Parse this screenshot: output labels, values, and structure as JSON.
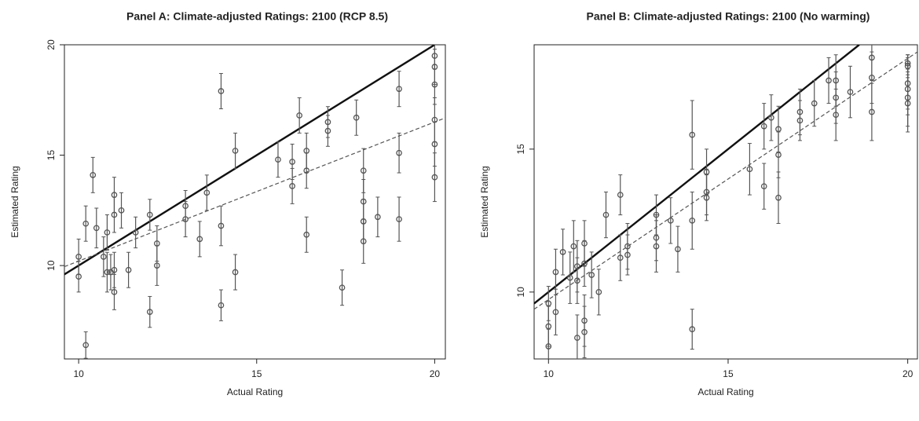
{
  "chart_data": [
    {
      "type": "scatter",
      "title": "Panel A: Climate-adjusted Ratings: 2100 (RCP 8.5)",
      "xlabel": "Actual Rating",
      "ylabel": "Estimated Rating",
      "color": "#555555",
      "x": [
        10,
        10,
        10.2,
        10.2,
        10.4,
        10.5,
        10.7,
        10.8,
        10.8,
        10.9,
        11,
        11,
        11,
        11,
        11.2,
        11.4,
        11.6,
        12,
        12,
        12.2,
        12.2,
        13,
        13,
        13.4,
        13.6,
        14,
        14,
        14,
        14.4,
        14.4,
        15.6,
        16,
        16,
        16.2,
        16.4,
        16.4,
        16.4,
        17,
        17,
        17.4,
        17.8,
        18,
        18,
        18,
        18,
        18.4,
        19,
        19,
        19,
        20,
        20,
        20,
        20,
        20,
        20
      ],
      "values": [
        10.4,
        9.5,
        11.9,
        6.4,
        14.1,
        11.7,
        10.4,
        11.5,
        9.7,
        9.7,
        13.2,
        12.3,
        9.8,
        8.8,
        12.5,
        9.8,
        11.5,
        12.3,
        7.9,
        11.0,
        10.0,
        12.7,
        12.1,
        11.2,
        13.3,
        17.9,
        11.8,
        8.2,
        15.2,
        9.7,
        14.8,
        14.7,
        13.6,
        16.8,
        15.2,
        14.3,
        11.4,
        16.5,
        16.1,
        9.0,
        16.7,
        14.3,
        12.9,
        12.0,
        11.1,
        12.2,
        18.0,
        15.1,
        12.1,
        19.5,
        19.0,
        18.2,
        16.6,
        15.5,
        14.0
      ],
      "errors": [
        0.8,
        0.7,
        0.8,
        0.6,
        0.8,
        0.9,
        0.9,
        0.8,
        0.9,
        0.8,
        0.8,
        0.8,
        0.8,
        0.8,
        0.8,
        0.8,
        0.7,
        0.7,
        0.7,
        0.8,
        0.9,
        0.7,
        0.8,
        0.8,
        0.8,
        0.8,
        0.9,
        0.7,
        0.8,
        0.8,
        0.8,
        0.8,
        0.8,
        0.8,
        0.8,
        0.8,
        0.8,
        0.7,
        0.7,
        0.8,
        0.8,
        1.0,
        1.0,
        1.0,
        1.0,
        0.9,
        0.8,
        0.9,
        1.0,
        0.6,
        0.8,
        0.9,
        1.0,
        1.0,
        1.1
      ],
      "lines": [
        {
          "style": "solid",
          "x": [
            9.6,
            20
          ],
          "y": [
            9.6,
            20
          ]
        },
        {
          "style": "dashed",
          "x": [
            9.6,
            20.3
          ],
          "y": [
            9.95,
            16.69
          ]
        }
      ],
      "xlim": [
        9.6,
        20.3
      ],
      "ylim": [
        5.77,
        20
      ],
      "xticks": [
        10,
        15,
        20
      ],
      "yticks": [
        10,
        15,
        20
      ]
    },
    {
      "type": "scatter",
      "title": "Panel B: Climate-adjusted Ratings: 2100 (No warming)",
      "xlabel": "Actual Rating",
      "ylabel": "Estimated Rating",
      "color": "#555555",
      "x": [
        10,
        10,
        10,
        10.2,
        10.2,
        10.4,
        10.6,
        10.7,
        10.8,
        10.8,
        10.8,
        11,
        11,
        11,
        11,
        11.2,
        11.4,
        11.6,
        12,
        12,
        12.2,
        12.2,
        13,
        13,
        13,
        13.4,
        13.6,
        14,
        14,
        14,
        14.4,
        14.4,
        14.4,
        15.6,
        16,
        16,
        16.2,
        16.4,
        16.4,
        16.4,
        17,
        17,
        17.4,
        17.8,
        18,
        18,
        18,
        18.4,
        19,
        19,
        19,
        20,
        20,
        20,
        20,
        20,
        20
      ],
      "values": [
        9.6,
        8.1,
        8.8,
        9.3,
        10.7,
        11.4,
        10.5,
        11.6,
        10.9,
        8.4,
        10.4,
        11.7,
        11.0,
        9.0,
        8.6,
        10.6,
        10.0,
        12.7,
        13.4,
        11.2,
        11.6,
        11.3,
        12.7,
        11.9,
        11.6,
        12.5,
        11.5,
        15.5,
        12.5,
        8.7,
        14.2,
        13.5,
        13.3,
        14.3,
        15.8,
        13.7,
        16.1,
        15.7,
        14.8,
        13.3,
        16.3,
        16.0,
        16.6,
        17.4,
        17.4,
        16.8,
        16.2,
        17.0,
        18.2,
        17.5,
        16.3,
        18.0,
        17.9,
        17.3,
        17.1,
        16.8,
        16.6
      ],
      "errors": [
        0.6,
        0.6,
        0.7,
        0.8,
        0.8,
        0.8,
        0.9,
        0.9,
        0.9,
        0.8,
        0.8,
        0.8,
        0.8,
        0.9,
        0.9,
        0.8,
        0.8,
        0.8,
        0.7,
        0.8,
        0.8,
        0.7,
        0.7,
        0.8,
        0.9,
        0.8,
        0.8,
        1.2,
        1.0,
        0.7,
        0.8,
        0.8,
        0.8,
        0.9,
        0.8,
        0.8,
        0.8,
        0.8,
        0.8,
        0.9,
        0.8,
        0.7,
        0.8,
        0.8,
        0.9,
        0.9,
        0.9,
        0.9,
        0.8,
        0.9,
        1.0,
        0.3,
        0.4,
        0.9,
        0.9,
        1.0,
        1.0
      ],
      "lines": [
        {
          "style": "solid",
          "x": [
            9.6,
            18.65
          ],
          "y": [
            9.6,
            18.65
          ]
        },
        {
          "style": "dashed",
          "x": [
            9.6,
            20.27
          ],
          "y": [
            9.4,
            18.4
          ]
        }
      ],
      "xlim": [
        9.6,
        20.27
      ],
      "ylim": [
        7.66,
        18.65
      ],
      "xticks": [
        10,
        15,
        20
      ],
      "yticks": [
        10,
        15
      ]
    }
  ]
}
